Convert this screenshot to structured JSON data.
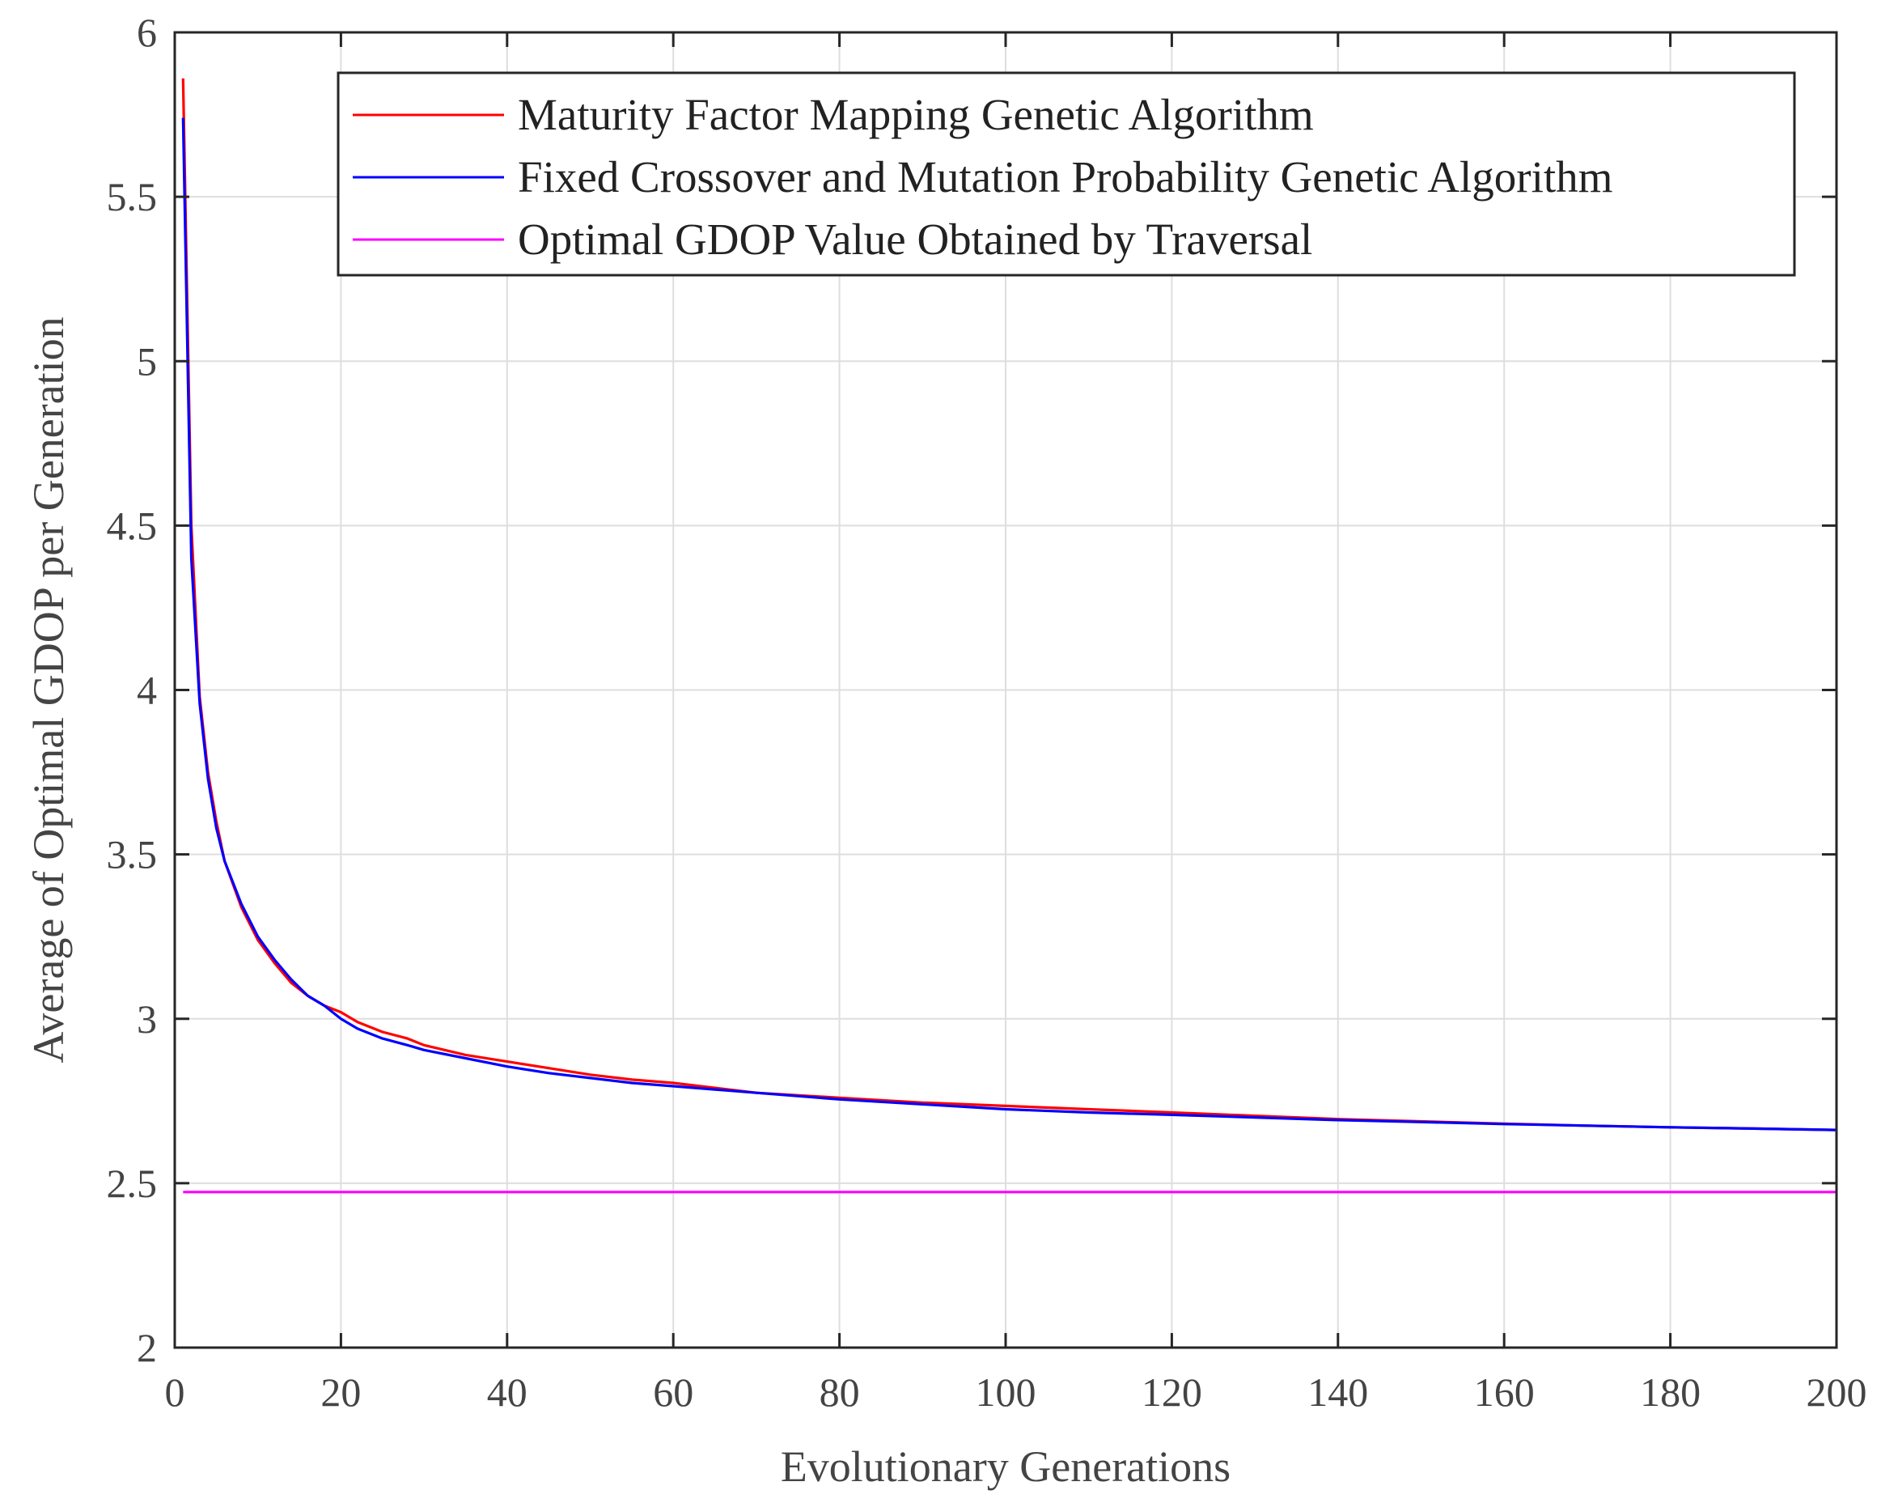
{
  "chart_data": {
    "type": "line",
    "title": "",
    "xlabel": "Evolutionary Generations",
    "ylabel": "Average of Optimal GDOP per Generation",
    "xlim": [
      0,
      200
    ],
    "ylim": [
      2,
      6
    ],
    "xticks": [
      0,
      20,
      40,
      60,
      80,
      100,
      120,
      140,
      160,
      180,
      200
    ],
    "yticks": [
      2,
      2.5,
      3,
      3.5,
      4,
      4.5,
      5,
      5.5,
      6
    ],
    "xtick_labels": [
      "0",
      "20",
      "40",
      "60",
      "80",
      "100",
      "120",
      "140",
      "160",
      "180",
      "200"
    ],
    "ytick_labels": [
      "2",
      "2.5",
      "3",
      "3.5",
      "4",
      "4.5",
      "5",
      "5.5",
      "6"
    ],
    "grid": true,
    "legend_position": "top-right",
    "series": [
      {
        "name": "Maturity Factor Mapping Genetic Algorithm",
        "color": "#ff0000",
        "x": [
          1,
          2,
          3,
          4,
          5,
          6,
          8,
          10,
          12,
          14,
          16,
          18,
          20,
          22,
          25,
          28,
          30,
          35,
          40,
          45,
          50,
          55,
          60,
          65,
          70,
          80,
          90,
          100,
          110,
          120,
          130,
          140,
          150,
          160,
          170,
          180,
          190,
          200
        ],
        "y": [
          5.86,
          4.5,
          3.98,
          3.75,
          3.6,
          3.48,
          3.34,
          3.24,
          3.17,
          3.11,
          3.07,
          3.04,
          3.02,
          2.99,
          2.96,
          2.94,
          2.92,
          2.89,
          2.87,
          2.85,
          2.83,
          2.815,
          2.805,
          2.79,
          2.775,
          2.76,
          2.745,
          2.735,
          2.725,
          2.715,
          2.705,
          2.695,
          2.688,
          2.681,
          2.675,
          2.67,
          2.666,
          2.662
        ]
      },
      {
        "name": "Fixed Crossover and Mutation Probability Genetic Algorithm",
        "color": "#0000ff",
        "x": [
          1,
          2,
          3,
          4,
          5,
          6,
          8,
          10,
          12,
          14,
          16,
          18,
          20,
          22,
          25,
          28,
          30,
          35,
          40,
          45,
          50,
          55,
          60,
          65,
          70,
          80,
          90,
          100,
          110,
          120,
          130,
          140,
          150,
          160,
          170,
          180,
          190,
          200
        ],
        "y": [
          5.74,
          4.4,
          3.96,
          3.73,
          3.58,
          3.48,
          3.35,
          3.25,
          3.18,
          3.12,
          3.07,
          3.04,
          3.0,
          2.97,
          2.94,
          2.92,
          2.905,
          2.88,
          2.855,
          2.835,
          2.82,
          2.805,
          2.795,
          2.785,
          2.775,
          2.755,
          2.74,
          2.725,
          2.715,
          2.708,
          2.7,
          2.692,
          2.686,
          2.68,
          2.675,
          2.67,
          2.666,
          2.662
        ]
      },
      {
        "name": "Optimal GDOP Value Obtained by Traversal",
        "color": "#ff00ff",
        "x": [
          1,
          200
        ],
        "y": [
          2.473,
          2.473
        ]
      }
    ]
  }
}
